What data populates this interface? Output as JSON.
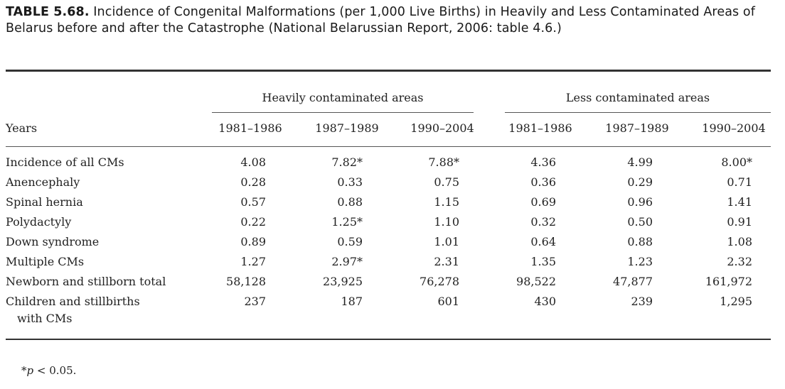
{
  "caption": {
    "label": "TABLE 5.68.",
    "text": "Incidence of Congenital Malformations (per 1,000 Live Births) in Heavily and Less Contaminated Areas of Belarus before and after the Catastrophe (National Belarussian Report, 2006: table 4.6.)"
  },
  "table": {
    "groups": [
      "Heavily contaminated areas",
      "Less contaminated areas"
    ],
    "row_header_label": "Years",
    "columns": [
      "1981–1986",
      "1987–1989",
      "1990–2004",
      "1981–1986",
      "1987–1989",
      "1990–2004"
    ],
    "rows": [
      {
        "label": "Incidence of all CMs",
        "values": [
          "4.08",
          "7.82*",
          "7.88*",
          "4.36",
          "4.99",
          "8.00*"
        ]
      },
      {
        "label": "Anencephaly",
        "values": [
          "0.28",
          "0.33",
          "0.75",
          "0.36",
          "0.29",
          "0.71"
        ]
      },
      {
        "label": "Spinal hernia",
        "values": [
          "0.57",
          "0.88",
          "1.15",
          "0.69",
          "0.96",
          "1.41"
        ]
      },
      {
        "label": "Polydactyly",
        "values": [
          "0.22",
          "1.25*",
          "1.10",
          "0.32",
          "0.50",
          "0.91"
        ]
      },
      {
        "label": "Down syndrome",
        "values": [
          "0.89",
          "0.59",
          "1.01",
          "0.64",
          "0.88",
          "1.08"
        ]
      },
      {
        "label": "Multiple CMs",
        "values": [
          "1.27",
          "2.97*",
          "2.31",
          "1.35",
          "1.23",
          "2.32"
        ]
      },
      {
        "label": "Newborn and stillborn total",
        "values": [
          "58,128",
          "23,925",
          "76,278",
          "98,522",
          "47,877",
          "161,972"
        ]
      },
      {
        "label": "Children and stillbirths",
        "label2": "with CMs",
        "values": [
          "237",
          "187",
          "601",
          "430",
          "239",
          "1,295"
        ]
      }
    ]
  },
  "footnote": {
    "symbol": "*",
    "p": "p",
    "text": " < 0.05."
  }
}
